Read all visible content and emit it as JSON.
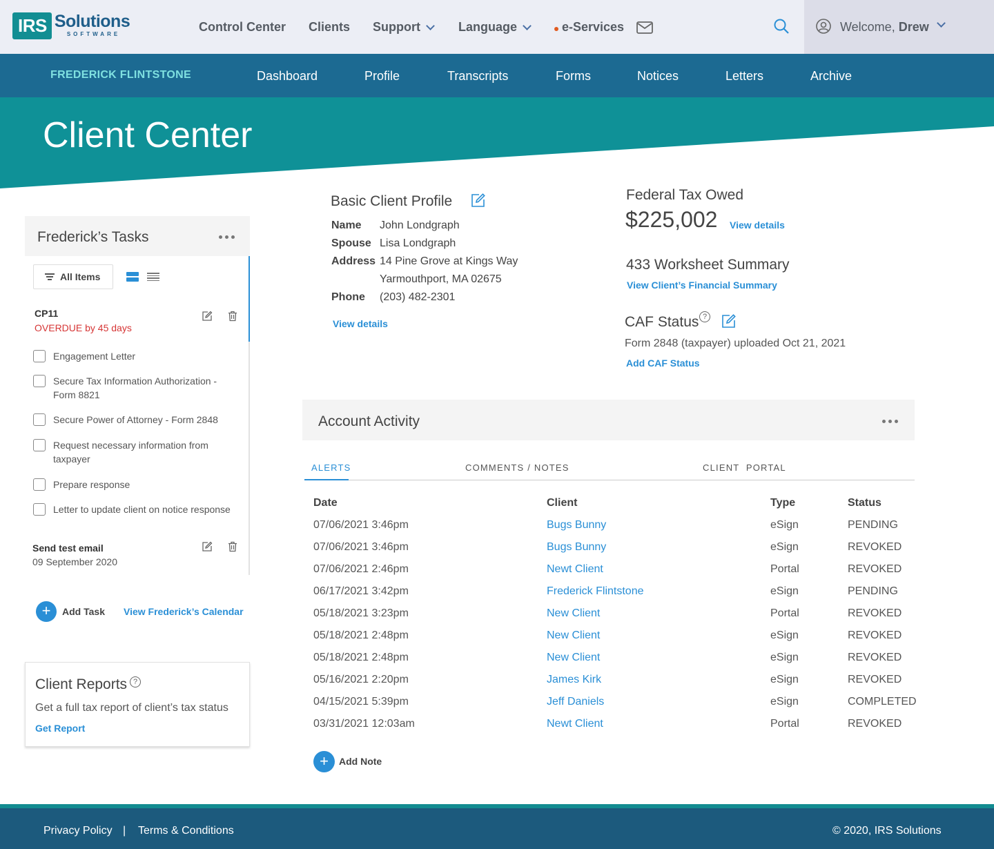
{
  "topnav": {
    "logo_box": "IRS",
    "logo_main": "Solutions",
    "logo_sub": "SOFTWARE",
    "control_center": "Control Center",
    "clients": "Clients",
    "support": "Support",
    "language": "Language",
    "eservices": "e-Services",
    "welcome_prefix": "Welcome, ",
    "user_name": "Drew"
  },
  "clientnav": {
    "client_name": "FREDERICK FLINTSTONE",
    "tabs": [
      "Dashboard",
      "Profile",
      "Transcripts",
      "Forms",
      "Notices",
      "Letters",
      "Archive"
    ]
  },
  "hero": {
    "title": "Client Center"
  },
  "tasks": {
    "title": "Frederick’s Tasks",
    "filter_label": "All Items",
    "task1": {
      "title": "CP11",
      "status": "OVERDUE by 45 days"
    },
    "checklist": [
      "Engagement Letter",
      "Secure Tax Information Authorization - Form 8821",
      "Secure Power of Attorney - Form 2848",
      "Request necessary information from taxpayer",
      "Prepare response",
      "Letter to update client on notice response"
    ],
    "task2": {
      "title": "Send test email",
      "date": "09 September 2020"
    },
    "add_task": "Add Task",
    "calendar_link": "View Frederick’s Calendar"
  },
  "reports": {
    "title": "Client Reports",
    "description": "Get a full tax report of client’s tax status",
    "link": "Get Report"
  },
  "profile": {
    "title": "Basic Client Profile",
    "name_label": "Name",
    "name": "John Londgraph",
    "spouse_label": "Spouse",
    "spouse": "Lisa Londgraph",
    "address_label": "Address",
    "address1": "14 Pine Grove at Kings Way",
    "address2": "Yarmouthport, MA 02675",
    "phone_label": "Phone",
    "phone": "(203) 482-2301",
    "view_details": "View details"
  },
  "federal": {
    "title": "Federal Tax Owed",
    "amount": "$225,002",
    "view_details": "View details"
  },
  "worksheet": {
    "title": "433 Worksheet Summary",
    "link": "View Client’s Financial Summary"
  },
  "caf": {
    "title": "CAF Status",
    "description": "Form 2848 (taxpayer) uploaded Oct 21, 2021",
    "link": "Add CAF Status"
  },
  "activity": {
    "title": "Account Activity",
    "tabs": [
      "ALERTS",
      "COMMENTS / NOTES",
      "CLIENT  PORTAL"
    ],
    "headers": [
      "Date",
      "Client",
      "Type",
      "Status"
    ],
    "rows": [
      {
        "date": "07/06/2021 3:46pm",
        "client": "Bugs Bunny",
        "type": "eSign",
        "status": "PENDING"
      },
      {
        "date": "07/06/2021 3:46pm",
        "client": "Bugs Bunny",
        "type": "eSign",
        "status": "REVOKED"
      },
      {
        "date": "07/06/2021 2:46pm",
        "client": "Newt Client",
        "type": "Portal",
        "status": "REVOKED"
      },
      {
        "date": "06/17/2021 3:42pm",
        "client": "Frederick Flintstone",
        "type": "eSign",
        "status": "PENDING"
      },
      {
        "date": "05/18/2021 3:23pm",
        "client": "New Client",
        "type": "Portal",
        "status": "REVOKED"
      },
      {
        "date": "05/18/2021 2:48pm",
        "client": "New Client",
        "type": "eSign",
        "status": "REVOKED"
      },
      {
        "date": "05/18/2021 2:48pm",
        "client": "New Client",
        "type": "eSign",
        "status": "REVOKED"
      },
      {
        "date": "05/16/2021 2:20pm",
        "client": "James Kirk",
        "type": "eSign",
        "status": "REVOKED"
      },
      {
        "date": "04/15/2021 5:39pm",
        "client": "Jeff Daniels",
        "type": "eSign",
        "status": "COMPLETED"
      },
      {
        "date": "03/31/2021 12:03am",
        "client": "Newt Client",
        "type": "Portal",
        "status": "REVOKED"
      }
    ],
    "add_note": "Add Note"
  },
  "footer": {
    "privacy": "Privacy Policy",
    "separator": "|",
    "terms": "Terms & Conditions",
    "copyright": "© 2020, IRS Solutions"
  },
  "colors": {
    "teal": "#0f9197",
    "navy": "#1c6a92",
    "link_blue": "#2a8fd6",
    "overdue_red": "#d63535"
  }
}
